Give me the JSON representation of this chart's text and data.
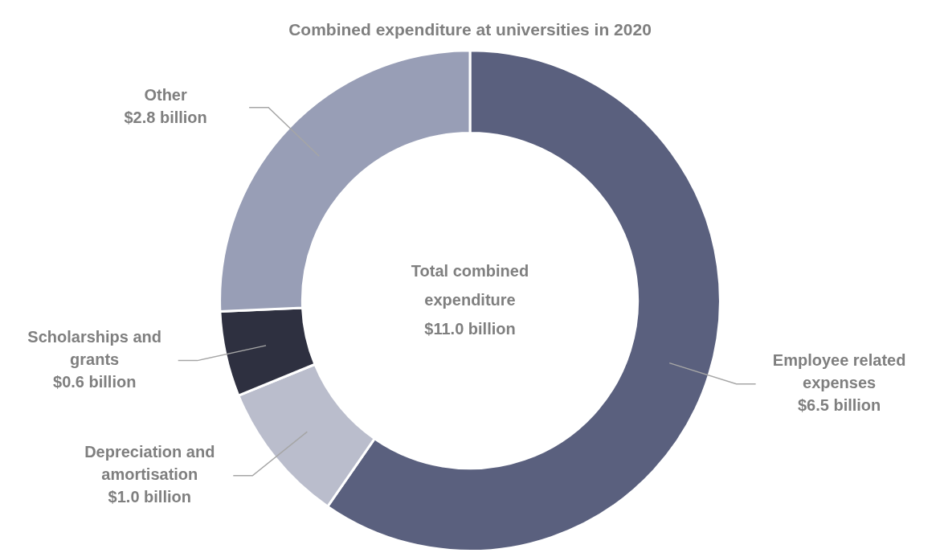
{
  "chart_data": {
    "type": "donut",
    "title": "Combined expenditure at universities in 2020",
    "categories": [
      "Employee related expenses",
      "Depreciation and amortisation",
      "Scholarships and grants",
      "Other"
    ],
    "values": [
      6.5,
      1.0,
      0.6,
      2.8
    ],
    "colors": [
      "#5a607e",
      "#babdcc",
      "#2e3040",
      "#989eb6"
    ],
    "value_labels": [
      "$6.5 billion",
      "$1.0 billion",
      "$0.6 billion",
      "$2.8 billion"
    ],
    "annotations": [
      "Total combined expenditure",
      "$11.0 billion"
    ]
  }
}
